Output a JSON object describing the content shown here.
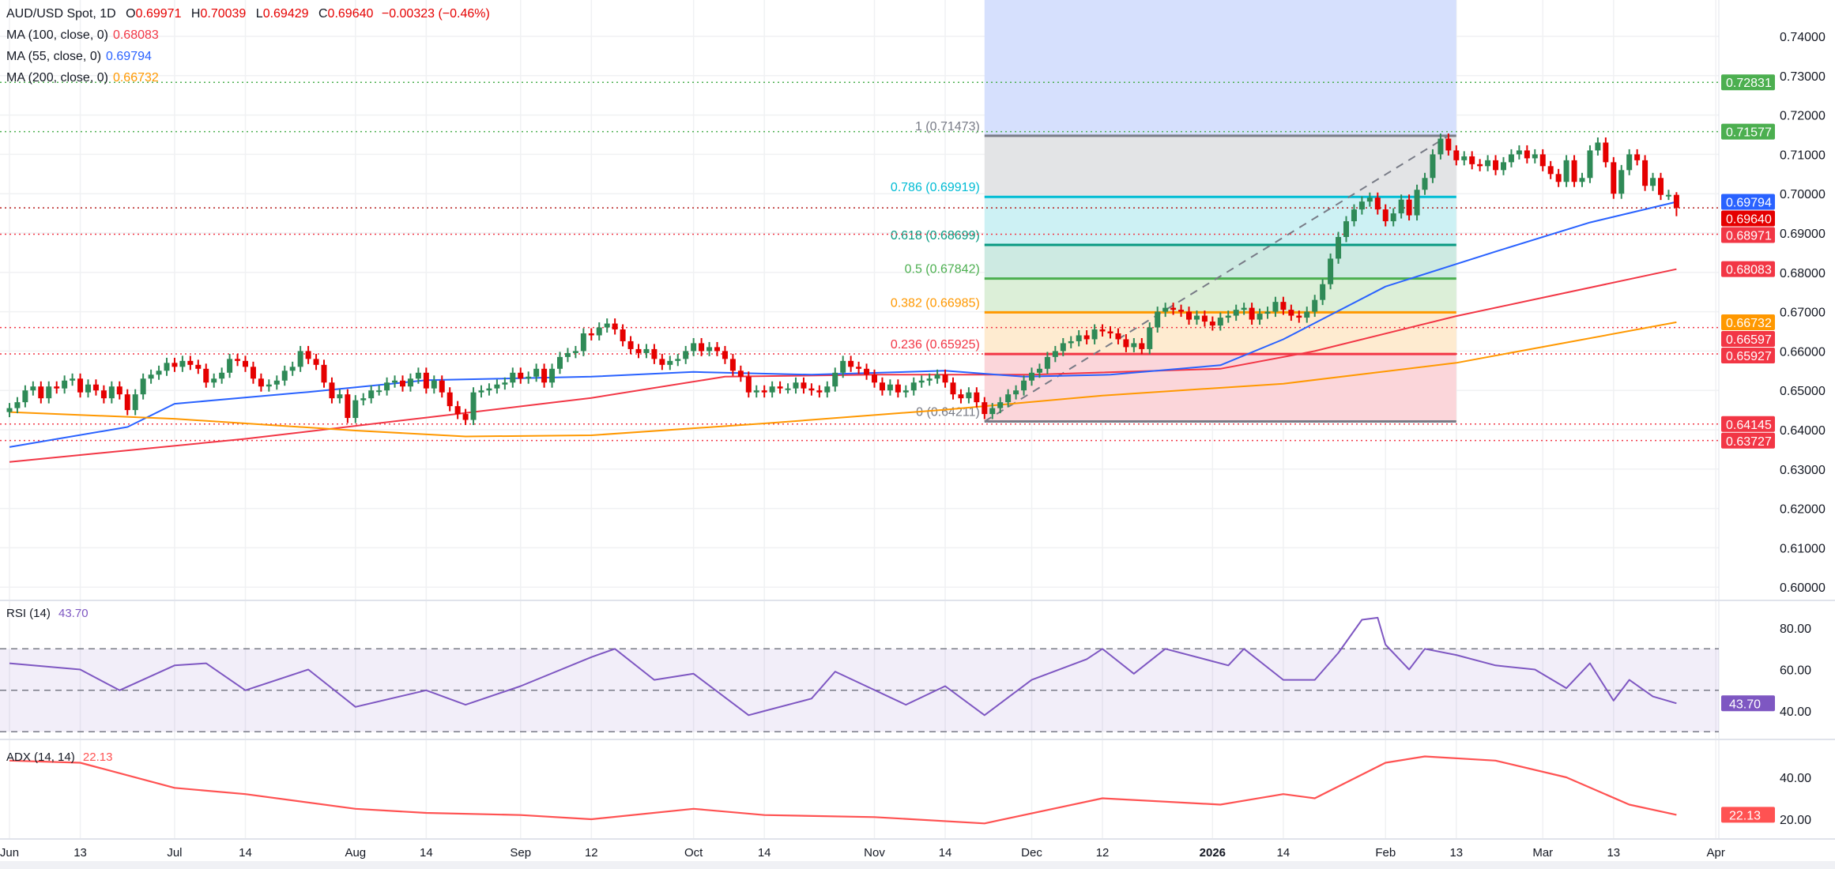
{
  "legend": {
    "symbol": "AUD/USD Spot, 1D",
    "o_label": "O",
    "o": "0.69971",
    "h_label": "H",
    "h": "0.70039",
    "l_label": "L",
    "l": "0.69429",
    "c_label": "C",
    "c": "0.69640",
    "change": "−0.00323 (−0.46%)",
    "ma100_label": "MA (100, close, 0)",
    "ma100": "0.68083",
    "ma55_label": "MA (55, close, 0)",
    "ma55": "0.69794",
    "ma200_label": "MA (200, close, 0)",
    "ma200": "0.66732"
  },
  "rsi_legend": {
    "label": "RSI (14)",
    "value": "43.70"
  },
  "adx_legend": {
    "label": "ADX (14, 14)",
    "value": "22.13"
  },
  "colors": {
    "up": "#2f8a57",
    "down": "#e50000",
    "ma55": "#2962ff",
    "ma100": "#f23645",
    "ma200": "#ff9800",
    "rsi": "#7e57c2",
    "adx": "#ff5252",
    "fib_zone": "#d6e0fd",
    "current_price": "#e50000"
  },
  "chart_data": {
    "type": "candlestick",
    "symbol": "AUD/USD Spot",
    "interval": "1D",
    "start_date": "2025-06-02",
    "closes": [
      0.6455,
      0.647,
      0.65,
      0.651,
      0.648,
      0.651,
      0.6505,
      0.6525,
      0.653,
      0.6495,
      0.6515,
      0.65,
      0.648,
      0.651,
      0.649,
      0.645,
      0.649,
      0.653,
      0.654,
      0.655,
      0.657,
      0.656,
      0.6575,
      0.6565,
      0.6555,
      0.652,
      0.653,
      0.6545,
      0.658,
      0.6575,
      0.656,
      0.653,
      0.651,
      0.6515,
      0.6525,
      0.655,
      0.656,
      0.66,
      0.658,
      0.6565,
      0.652,
      0.648,
      0.649,
      0.643,
      0.6475,
      0.648,
      0.65,
      0.65,
      0.652,
      0.6525,
      0.651,
      0.653,
      0.6545,
      0.6505,
      0.6525,
      0.6495,
      0.646,
      0.644,
      0.6425,
      0.6495,
      0.65,
      0.6505,
      0.6515,
      0.652,
      0.6545,
      0.653,
      0.6535,
      0.6555,
      0.652,
      0.6555,
      0.6585,
      0.6595,
      0.66,
      0.6645,
      0.664,
      0.666,
      0.667,
      0.6655,
      0.6625,
      0.6605,
      0.6595,
      0.6605,
      0.658,
      0.6565,
      0.6575,
      0.658,
      0.66,
      0.662,
      0.66,
      0.661,
      0.66,
      0.658,
      0.655,
      0.6535,
      0.6495,
      0.65,
      0.6495,
      0.651,
      0.6505,
      0.6505,
      0.652,
      0.6505,
      0.65,
      0.6495,
      0.651,
      0.6545,
      0.6575,
      0.656,
      0.6555,
      0.654,
      0.652,
      0.65,
      0.6515,
      0.6495,
      0.65,
      0.652,
      0.6525,
      0.653,
      0.654,
      0.652,
      0.649,
      0.648,
      0.6495,
      0.647,
      0.644,
      0.6455,
      0.647,
      0.649,
      0.65,
      0.6525,
      0.6545,
      0.6555,
      0.6585,
      0.66,
      0.662,
      0.6625,
      0.664,
      0.663,
      0.6655,
      0.665,
      0.6645,
      0.663,
      0.661,
      0.662,
      0.6605,
      0.666,
      0.67,
      0.671,
      0.6705,
      0.67,
      0.668,
      0.669,
      0.6675,
      0.6665,
      0.6685,
      0.669,
      0.6705,
      0.671,
      0.668,
      0.6695,
      0.67,
      0.6725,
      0.6705,
      0.669,
      0.6685,
      0.67,
      0.673,
      0.677,
      0.6835,
      0.689,
      0.693,
      0.696,
      0.698,
      0.699,
      0.696,
      0.693,
      0.695,
      0.6985,
      0.6945,
      0.701,
      0.704,
      0.71,
      0.714,
      0.711,
      0.7085,
      0.7095,
      0.7075,
      0.707,
      0.7085,
      0.706,
      0.708,
      0.71,
      0.711,
      0.709,
      0.71,
      0.707,
      0.705,
      0.703,
      0.7085,
      0.703,
      0.704,
      0.711,
      0.713,
      0.708,
      0.7,
      0.706,
      0.71,
      0.7085,
      0.702,
      0.704,
      0.6997,
      0.6997,
      0.6964
    ],
    "last_bar": {
      "open": 0.69971,
      "high": 0.70039,
      "low": 0.69429,
      "close": 0.6964
    },
    "moving_averages": [
      {
        "name": "MA (100, close, 0)",
        "color": "#f23645",
        "points": [
          [
            "2025-06-02",
            0.6318
          ],
          [
            "2025-07-14",
            0.6377
          ],
          [
            "2025-08-14",
            0.6431
          ],
          [
            "2025-09-12",
            0.6481
          ],
          [
            "2025-10-07",
            0.6535
          ],
          [
            "2025-11-03",
            0.654
          ],
          [
            "2025-12-01",
            0.654
          ],
          [
            "2026-01-02",
            0.6555
          ],
          [
            "2026-01-20",
            0.66
          ],
          [
            "2026-02-13",
            0.6689
          ],
          [
            "2026-03-25",
            0.68083
          ]
        ]
      },
      {
        "name": "MA (55, close, 0)",
        "color": "#2962ff",
        "points": [
          [
            "2025-06-02",
            0.6356
          ],
          [
            "2025-06-23",
            0.6407
          ],
          [
            "2025-07-01",
            0.6466
          ],
          [
            "2025-07-24",
            0.6496
          ],
          [
            "2025-08-14",
            0.6526
          ],
          [
            "2025-09-12",
            0.6535
          ],
          [
            "2025-10-01",
            0.6547
          ],
          [
            "2025-10-22",
            0.654
          ],
          [
            "2025-11-14",
            0.655
          ],
          [
            "2025-11-28",
            0.6535
          ],
          [
            "2025-12-15",
            0.654
          ],
          [
            "2026-01-02",
            0.6564
          ],
          [
            "2026-01-14",
            0.663
          ],
          [
            "2026-02-02",
            0.6764
          ],
          [
            "2026-02-20",
            0.6853
          ],
          [
            "2026-03-10",
            0.6927
          ],
          [
            "2026-03-25",
            0.69794
          ]
        ]
      },
      {
        "name": "MA (200, close, 0)",
        "color": "#ff9800",
        "points": [
          [
            "2025-06-02",
            0.6445
          ],
          [
            "2025-07-01",
            0.6428
          ],
          [
            "2025-08-01",
            0.6398
          ],
          [
            "2025-08-21",
            0.6383
          ],
          [
            "2025-09-12",
            0.6386
          ],
          [
            "2025-10-14",
            0.6416
          ],
          [
            "2025-11-14",
            0.6451
          ],
          [
            "2025-12-12",
            0.6487
          ],
          [
            "2026-01-14",
            0.6517
          ],
          [
            "2026-02-13",
            0.657
          ],
          [
            "2026-03-25",
            0.66732
          ]
        ]
      }
    ],
    "fibonacci": {
      "from": {
        "date": "2025-11-21",
        "price": 0.64211
      },
      "to": {
        "date": "2026-02-12",
        "price": 0.71473
      },
      "extend_to": "2026-02-13",
      "levels": [
        {
          "ratio": "1",
          "price": 0.71473,
          "label": "1 (0.71473)",
          "color": "#787b86",
          "fill": "#e3e4e6"
        },
        {
          "ratio": "0.786",
          "price": 0.69919,
          "label": "0.786 (0.69919)",
          "color": "#00bcd4",
          "fill": "#cdf1f4"
        },
        {
          "ratio": "0.618",
          "price": 0.68699,
          "label": "0.618 (0.68699)",
          "color": "#089981",
          "fill": "#cdeae2"
        },
        {
          "ratio": "0.5",
          "price": 0.67842,
          "label": "0.5 (0.67842)",
          "color": "#4caf50",
          "fill": "#dcefd8"
        },
        {
          "ratio": "0.382",
          "price": 0.66985,
          "label": "0.382 (0.66985)",
          "color": "#ff9800",
          "fill": "#feebd0"
        },
        {
          "ratio": "0.236",
          "price": 0.65925,
          "label": "0.236 (0.65925)",
          "color": "#f23645",
          "fill": "#fbd6da"
        },
        {
          "ratio": "0",
          "price": 0.64211,
          "label": "0 (0.64211)",
          "color": "#787b86",
          "fill": null
        }
      ]
    },
    "horizontal_lines": [
      {
        "price": 0.72831,
        "color": "#4caf50"
      },
      {
        "price": 0.71577,
        "color": "#4caf50"
      },
      {
        "price": 0.6964,
        "color": "#b71c1c"
      },
      {
        "price": 0.68971,
        "color": "#f23645"
      },
      {
        "price": 0.66597,
        "color": "#f23645"
      },
      {
        "price": 0.65927,
        "color": "#f23645"
      },
      {
        "price": 0.64145,
        "color": "#f23645"
      },
      {
        "price": 0.63727,
        "color": "#f23645"
      }
    ],
    "price_tags": [
      {
        "text": "0.72831",
        "price": 0.72831,
        "bg": "#4caf50",
        "fg": "#ffffff"
      },
      {
        "text": "0.71577",
        "price": 0.71577,
        "bg": "#4caf50",
        "fg": "#ffffff"
      },
      {
        "text": "0.69794",
        "price": 0.69794,
        "bg": "#2962ff",
        "fg": "#ffffff"
      },
      {
        "text": "0.69640",
        "price": 0.6964,
        "bg": "#e50000",
        "fg": "#ffffff"
      },
      {
        "text": "0.68971",
        "price": 0.68971,
        "bg": "#f23645",
        "fg": "#ffffff"
      },
      {
        "text": "0.68083",
        "price": 0.68083,
        "bg": "#f23645",
        "fg": "#ffffff"
      },
      {
        "text": "0.66732",
        "price": 0.66732,
        "bg": "#ff9800",
        "fg": "#131722"
      },
      {
        "text": "0.66597",
        "price": 0.66597,
        "bg": "#f23645",
        "fg": "#ffffff"
      },
      {
        "text": "0.65927",
        "price": 0.65927,
        "bg": "#f23645",
        "fg": "#ffffff"
      },
      {
        "text": "0.64145",
        "price": 0.64145,
        "bg": "#f23645",
        "fg": "#ffffff"
      },
      {
        "text": "0.63727",
        "price": 0.63727,
        "bg": "#f23645",
        "fg": "#ffffff"
      }
    ],
    "price_axis": {
      "ticks": [
        "0.74000",
        "0.73000",
        "0.72000",
        "0.71000",
        "0.70000",
        "0.69000",
        "0.68000",
        "0.67000",
        "0.66000",
        "0.65000",
        "0.64000",
        "0.63000",
        "0.62000",
        "0.61000",
        "0.60000"
      ],
      "range": [
        0.5995,
        0.7492
      ]
    },
    "x_axis": {
      "ticks": [
        {
          "label": "Jun",
          "date": "2025-06-02"
        },
        {
          "label": "13",
          "date": "2025-06-13"
        },
        {
          "label": "Jul",
          "date": "2025-07-01"
        },
        {
          "label": "14",
          "date": "2025-07-14"
        },
        {
          "label": "Aug",
          "date": "2025-08-01"
        },
        {
          "label": "14",
          "date": "2025-08-14"
        },
        {
          "label": "Sep",
          "date": "2025-09-01"
        },
        {
          "label": "12",
          "date": "2025-09-12"
        },
        {
          "label": "Oct",
          "date": "2025-10-01"
        },
        {
          "label": "14",
          "date": "2025-10-14"
        },
        {
          "label": "Nov",
          "date": "2025-11-03"
        },
        {
          "label": "14",
          "date": "2025-11-14"
        },
        {
          "label": "Dec",
          "date": "2025-12-01"
        },
        {
          "label": "12",
          "date": "2025-12-12"
        },
        {
          "label": "2026",
          "date": "2026-01-01",
          "bold": true
        },
        {
          "label": "14",
          "date": "2026-01-14"
        },
        {
          "label": "Feb",
          "date": "2026-02-02"
        },
        {
          "label": "13",
          "date": "2026-02-13"
        },
        {
          "label": "Mar",
          "date": "2026-03-02"
        },
        {
          "label": "13",
          "date": "2026-03-13"
        },
        {
          "label": "Apr",
          "date": "2026-04-01"
        }
      ]
    },
    "rsi": {
      "name": "RSI (14)",
      "value": "43.70",
      "bands": [
        30,
        50,
        70
      ],
      "ticks": [
        "80.00",
        "60.00",
        "40.00"
      ],
      "points": [
        [
          "2025-06-02",
          63
        ],
        [
          "2025-06-13",
          60
        ],
        [
          "2025-06-20",
          50
        ],
        [
          "2025-07-01",
          62
        ],
        [
          "2025-07-07",
          63
        ],
        [
          "2025-07-14",
          50
        ],
        [
          "2025-07-24",
          60
        ],
        [
          "2025-08-01",
          42
        ],
        [
          "2025-08-14",
          50
        ],
        [
          "2025-08-21",
          43
        ],
        [
          "2025-09-01",
          52
        ],
        [
          "2025-09-12",
          66
        ],
        [
          "2025-09-17",
          70
        ],
        [
          "2025-09-24",
          55
        ],
        [
          "2025-10-01",
          58
        ],
        [
          "2025-10-10",
          38
        ],
        [
          "2025-10-14",
          40
        ],
        [
          "2025-10-22",
          46
        ],
        [
          "2025-10-27",
          59
        ],
        [
          "2025-11-07",
          43
        ],
        [
          "2025-11-14",
          52
        ],
        [
          "2025-11-21",
          38
        ],
        [
          "2025-12-01",
          55
        ],
        [
          "2025-12-10",
          65
        ],
        [
          "2025-12-12",
          70
        ],
        [
          "2025-12-18",
          58
        ],
        [
          "2025-12-24",
          70
        ],
        [
          "2026-01-05",
          62
        ],
        [
          "2026-01-07",
          70
        ],
        [
          "2026-01-14",
          55
        ],
        [
          "2026-01-20",
          55
        ],
        [
          "2026-01-23",
          68
        ],
        [
          "2026-01-28",
          84
        ],
        [
          "2026-01-30",
          85
        ],
        [
          "2026-02-02",
          72
        ],
        [
          "2026-02-05",
          60
        ],
        [
          "2026-02-09",
          70
        ],
        [
          "2026-02-13",
          67
        ],
        [
          "2026-02-20",
          62
        ],
        [
          "2026-02-27",
          60
        ],
        [
          "2026-03-05",
          51
        ],
        [
          "2026-03-10",
          63
        ],
        [
          "2026-03-13",
          45
        ],
        [
          "2026-03-17",
          55
        ],
        [
          "2026-03-20",
          47
        ],
        [
          "2026-03-25",
          43.7
        ]
      ]
    },
    "adx": {
      "name": "ADX (14, 14)",
      "value": "22.13",
      "ticks": [
        "40.00",
        "20.00"
      ],
      "points": [
        [
          "2025-06-02",
          48
        ],
        [
          "2025-06-13",
          47
        ],
        [
          "2025-07-01",
          35
        ],
        [
          "2025-07-14",
          32
        ],
        [
          "2025-08-01",
          25
        ],
        [
          "2025-08-14",
          23
        ],
        [
          "2025-09-01",
          22
        ],
        [
          "2025-09-12",
          20
        ],
        [
          "2025-10-01",
          25
        ],
        [
          "2025-10-14",
          22
        ],
        [
          "2025-11-03",
          21
        ],
        [
          "2025-11-21",
          18
        ],
        [
          "2025-12-12",
          30
        ],
        [
          "2026-01-02",
          27
        ],
        [
          "2026-01-14",
          32
        ],
        [
          "2026-01-20",
          30
        ],
        [
          "2026-02-02",
          47
        ],
        [
          "2026-02-09",
          50
        ],
        [
          "2026-02-20",
          48
        ],
        [
          "2026-03-05",
          40
        ],
        [
          "2026-03-17",
          27
        ],
        [
          "2026-03-25",
          22.13
        ]
      ]
    }
  }
}
